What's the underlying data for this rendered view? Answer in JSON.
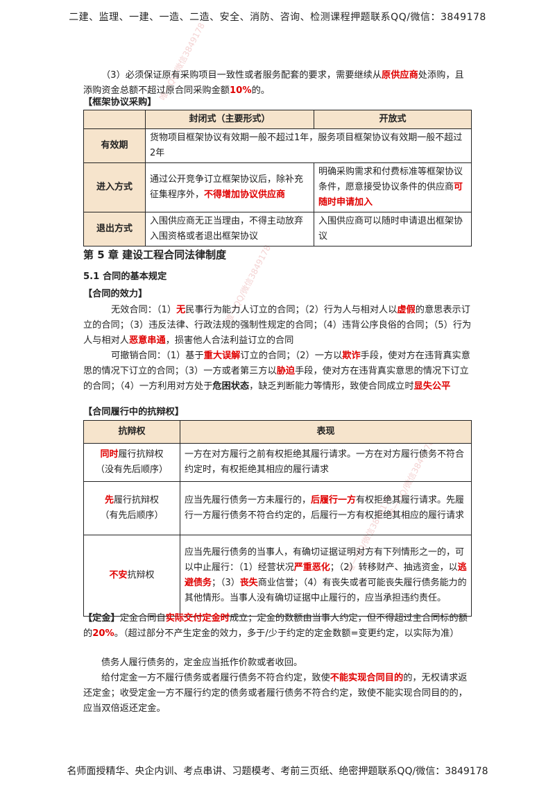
{
  "header_text": "二建、监理、一建、一造、二造、安全、消防、咨询、检测课程押题联系QQ/微信：3849178",
  "footer_text": "名师面授精华、央企内训、考点串讲、习题模考、考前三页纸、绝密押题联系QQ/微信：3849178",
  "watermarks": [
    "唯一QQ/微信3849178",
    "唯一QQ/微信3849178",
    "唯一QQ/微信3849178",
    "唯一QQ/微信3849178"
  ],
  "para_procure": {
    "a": "（3）必须保证原有采购项目一致性或者服务配套的要求，需要继续从",
    "b": "原供应商",
    "c": "处添购，且添购资金总额不超过原合同采购金额",
    "d": "10%",
    "e": "的。"
  },
  "framework_heading": "【框架协议采购】",
  "framework_table": {
    "headers": [
      "",
      "封闭式（主要形式）",
      "开放式"
    ],
    "validity_label": "有效期",
    "validity_text": "货物项目框架协议有效期一般不超过1年，服务项目框架协议有效期一般不超过2年",
    "entry_label": "进入方式",
    "entry_closed_a": "通过公开竞争订立框架协议后，除补充征集程序外，",
    "entry_closed_b": "不得增加协议供应商",
    "entry_open_a": "明确采购需求和付费标准等框架协议条件，愿意接受协议条件的供应商",
    "entry_open_b": "可随时申请加入",
    "exit_label": "退出方式",
    "exit_closed": "入围供应商无正当理由，不得主动放弃入围资格或者退出框架协议",
    "exit_open": "入围供应商可以随时申请退出框架协议"
  },
  "chapter_title": "第 5 章  建设工程合同法律制度",
  "section_title": "5.1  合同的基本规定",
  "validity_heading": "【合同的效力】",
  "void_para": {
    "a": "无效合同：（1）",
    "b": "无",
    "c": "民事行为能力人订立的合同；（2）行为人与相对人以",
    "d": "虚假",
    "e": "的意思表示订立的合同；（3）违反法律、行政法规的强制性规定的合同；（4）违背公序良俗的合同；（5）行为人与相对人",
    "f": "恶意串通",
    "g": "，损害他人合法利益订立的合同"
  },
  "revocable_para": {
    "a": "可撤销合同：（1）基于",
    "b": "重大误解",
    "c": "订立的合同；（2）一方以",
    "d": "欺诈",
    "e": "手段，使对方在违背真实意思的情况下订立的合同；（3）一方或者第三方以",
    "f": "胁迫",
    "g": "手段，使对方在违背真实意思的情况下订立的合同；（4）一方利用对方处于",
    "h": "危困状态",
    "i": "，缺乏判断能力等情形，致使合同成立时",
    "j": "显失公平"
  },
  "defense_heading": "【合同履行中的抗辩权】",
  "defense_table": {
    "headers": [
      "抗辩权",
      "表现"
    ],
    "rows": [
      {
        "label_red": "同时",
        "label_rest": "履行抗辩权",
        "label_sub": "（没有先后顺序）",
        "desc": "一方在对方履行之前有权拒绝其履行请求。一方在对方履行债务不符合约定时，有权拒绝其相应的履行请求"
      },
      {
        "label_red": "先",
        "label_rest": "履行抗辩权",
        "label_sub": "（有先后顺序）",
        "desc_a": "应当先履行债务一方未履行的，",
        "desc_b": "后履行一方",
        "desc_c": "有权拒绝其履行请求。先履行一方履行债务不符合约定的，后履行一方有权拒绝其相应的履行请求"
      },
      {
        "label_red": "不安",
        "label_rest": "抗辩权",
        "desc_a": "应当先履行债务的当事人，有确切证据证明对方有下列情形之一的，可以中止履行：（1）经营状况",
        "desc_b": "严重恶化",
        "desc_c": "；（2）转移财产、抽逃资金，以",
        "desc_d": "逃避债务",
        "desc_e": "；（3）",
        "desc_f": "丧失",
        "desc_g": "商业信誉；（4）有丧失或者可能丧失履行债务能力的其他情形。当事人没有确切证据中止履行的，应当承担违约责任。"
      }
    ]
  },
  "deposit_para": {
    "a": "【定金】",
    "b": "定金合同自",
    "c": "实际交付定金时",
    "d": "成立；定金的数额由当事人约定，但不得超过主合同标的额的",
    "e": "20%",
    "f": "。（超过部分不产生定金的效力，多于/少于约定的定金数额=变更约定，以实际为准）"
  },
  "debtor_para": "债务人履行债务的，定金应当抵作价款或者收回。",
  "penalty_para": {
    "a": "给付定金一方不履行债务或者履行债务不符合约定，致使",
    "b": "不能实现合同目的",
    "c": "的，无权请求返还定金；收受定金一方不履行约定的债务或者履行债务不符合约定，致使不能实现合同目的的，应当双倍返还定金。"
  }
}
